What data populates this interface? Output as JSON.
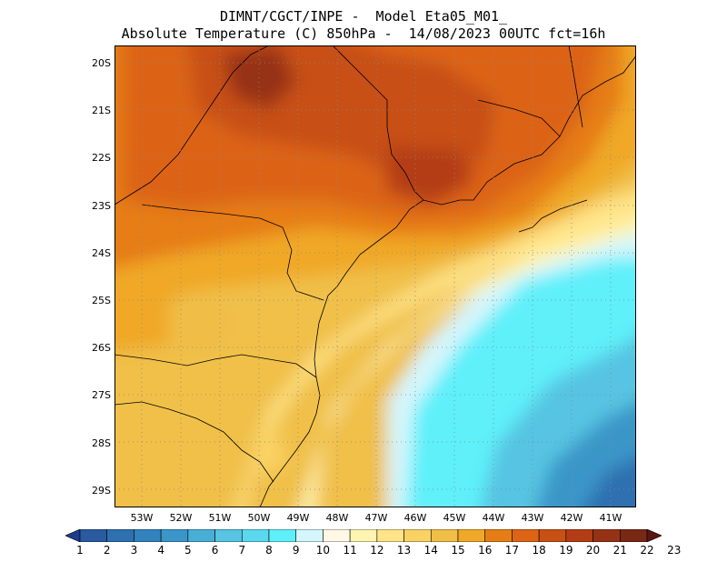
{
  "header": {
    "line1": "DIMNT/CGCT/INPE -  Model Eta05_M01_",
    "line2": "Absolute Temperature (C) 850hPa -  14/08/2023 00UTC fct=16h"
  },
  "map": {
    "lat_ticks": [
      "20S",
      "21S",
      "22S",
      "23S",
      "24S",
      "25S",
      "26S",
      "27S",
      "28S",
      "29S"
    ],
    "lon_ticks": [
      "53W",
      "52W",
      "51W",
      "50W",
      "49W",
      "48W",
      "47W",
      "46W",
      "45W",
      "44W",
      "43W",
      "42W",
      "41W"
    ],
    "lat_range": [
      -29.5,
      -19.7
    ],
    "lon_range": [
      -53.9,
      -40.5
    ]
  },
  "colorbar": {
    "labels": [
      "1",
      "2",
      "3",
      "4",
      "5",
      "6",
      "7",
      "8",
      "9",
      "10",
      "11",
      "12",
      "13",
      "14",
      "15",
      "16",
      "17",
      "18",
      "19",
      "20",
      "21",
      "22",
      "23"
    ],
    "colors": [
      "#1e3c8c",
      "#2a5aa0",
      "#2e70b0",
      "#3282be",
      "#3a96c8",
      "#48aed6",
      "#56c4e2",
      "#5ad8ee",
      "#5ef0fa",
      "#d4f6fc",
      "#fff8e4",
      "#fff4b0",
      "#ffe488",
      "#fad264",
      "#f0be46",
      "#f0a828",
      "#e67d14",
      "#dc6414",
      "#c85014",
      "#b43c14",
      "#963214",
      "#782814",
      "#5a1414"
    ]
  }
}
